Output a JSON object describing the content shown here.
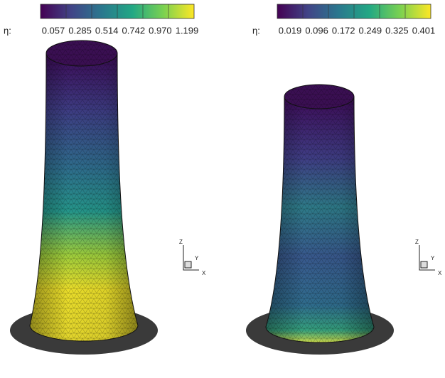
{
  "panels": [
    {
      "colorbar": {
        "label": "η:",
        "ticks": [
          "0.057",
          "0.285",
          "0.514",
          "0.742",
          "0.970",
          "1.199"
        ]
      },
      "axes": {
        "z": "Z",
        "y": "Y",
        "x": "X"
      }
    },
    {
      "colorbar": {
        "label": "η:",
        "ticks": [
          "0.019",
          "0.096",
          "0.172",
          "0.249",
          "0.325",
          "0.401"
        ]
      },
      "axes": {
        "z": "Z",
        "y": "Y",
        "x": "X"
      }
    }
  ]
}
